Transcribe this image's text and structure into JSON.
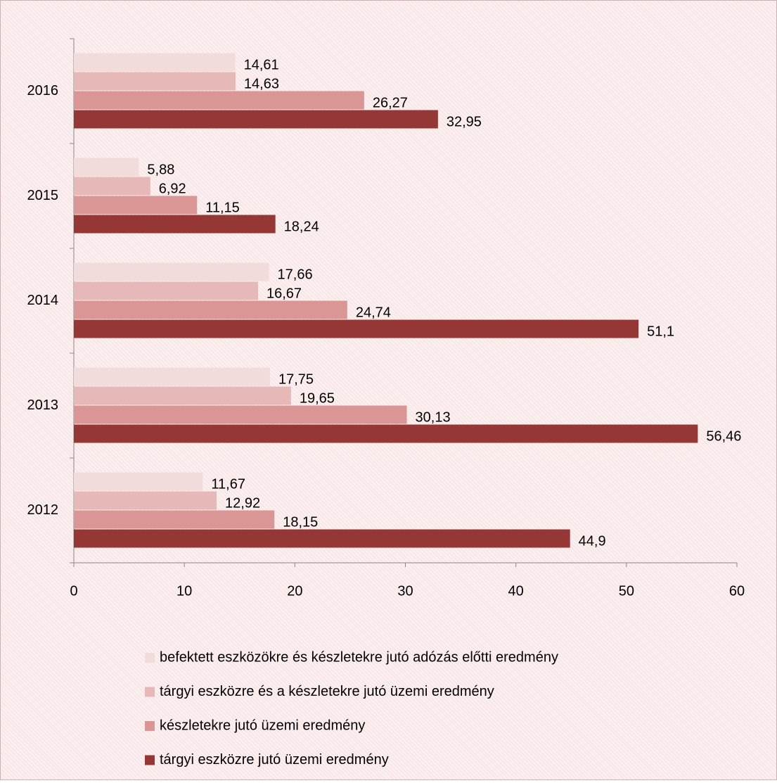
{
  "chart_data": {
    "type": "bar",
    "orientation": "horizontal",
    "categories": [
      "2012",
      "2013",
      "2014",
      "2015",
      "2016"
    ],
    "series": [
      {
        "name": "befektett eszközökre és készletekre jutó adózás előtti eredmény",
        "color": "#f2dcdb",
        "values": [
          11.67,
          17.75,
          17.66,
          5.88,
          14.61
        ],
        "value_labels": [
          "11,67",
          "17,75",
          "17,66",
          "5,88",
          "14,61"
        ]
      },
      {
        "name": "tárgyi eszközre és a készletekre jutó üzemi eredmény",
        "color": "#e6b9b8",
        "values": [
          12.92,
          19.65,
          16.67,
          6.92,
          14.63
        ],
        "value_labels": [
          "12,92",
          "19,65",
          "16,67",
          "6,92",
          "14,63"
        ]
      },
      {
        "name": "készletekre jutó üzemi eredmény",
        "color": "#d99694",
        "values": [
          18.15,
          30.13,
          24.74,
          11.15,
          26.27
        ],
        "value_labels": [
          "18,15",
          "30,13",
          "24,74",
          "11,15",
          "26,27"
        ]
      },
      {
        "name": "tárgyi eszközre jutó üzemi eredmény",
        "color": "#953735",
        "values": [
          44.9,
          56.46,
          51.1,
          18.24,
          32.95
        ],
        "value_labels": [
          "44,9",
          "56,46",
          "51,1",
          "18,24",
          "32,95"
        ]
      }
    ],
    "xlim": [
      0,
      60
    ],
    "xticks": [
      0,
      10,
      20,
      30,
      40,
      50,
      60
    ],
    "grid": false,
    "legend": "bottom"
  }
}
